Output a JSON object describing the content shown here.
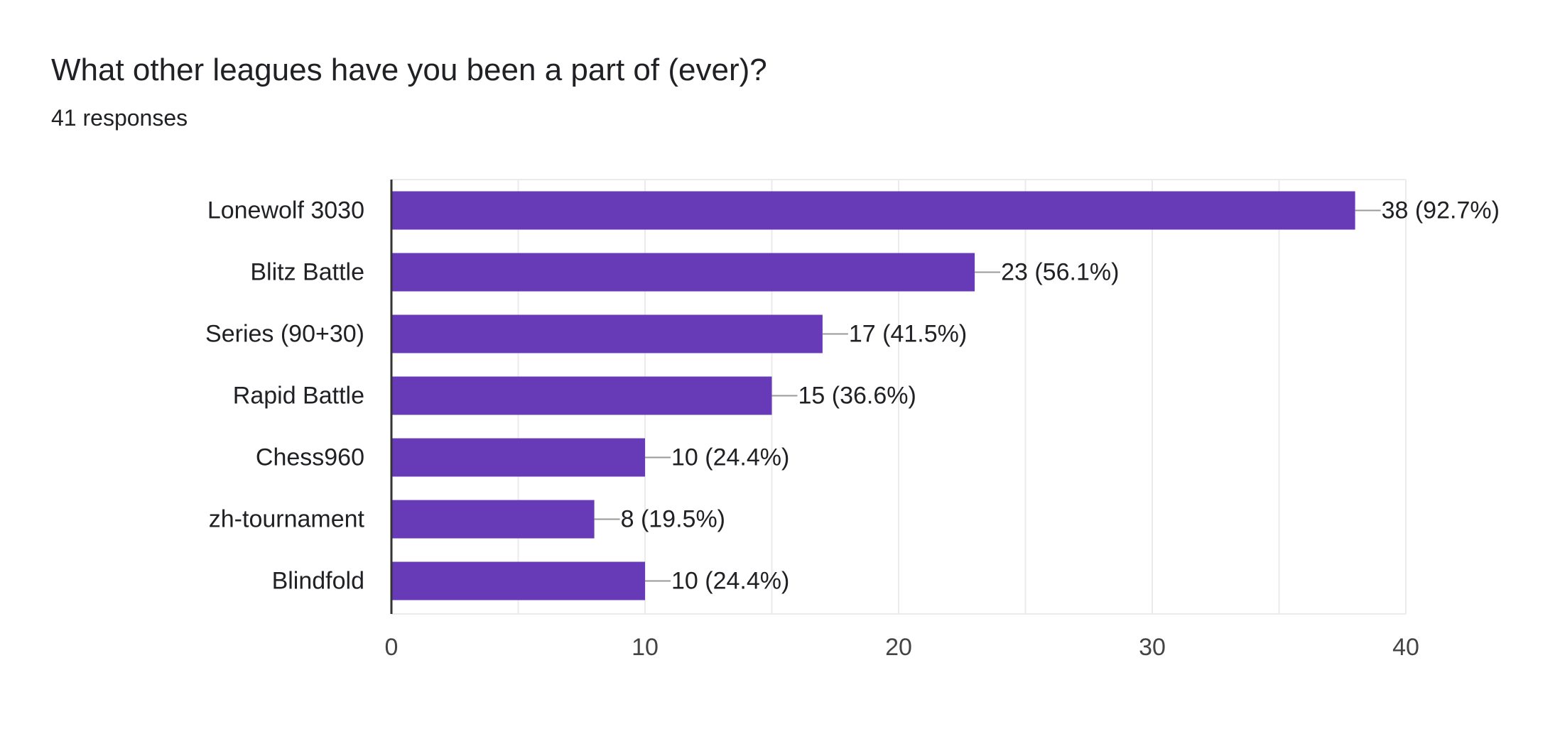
{
  "question": {
    "title": "What other leagues have you been a part of (ever)?",
    "responses": "41 responses"
  },
  "colors": {
    "bar": "#673AB7",
    "grid": "#EBEBEB",
    "axis": "#333333",
    "leader": "#999999",
    "text": "#202124",
    "tick": "#444444"
  },
  "chart_data": {
    "type": "bar",
    "orientation": "horizontal",
    "categories": [
      "Lonewolf 3030",
      "Blitz Battle",
      "Series (90+30)",
      "Rapid Battle",
      "Chess960",
      "zh-tournament",
      "Blindfold"
    ],
    "values": [
      38,
      23,
      17,
      15,
      10,
      8,
      10
    ],
    "data_labels": [
      "38 (92.7%)",
      "23 (56.1%)",
      "17 (41.5%)",
      "15 (36.6%)",
      "10 (24.4%)",
      "8 (19.5%)",
      "10 (24.4%)"
    ],
    "xlim": [
      0,
      40
    ],
    "xticks": [
      0,
      10,
      20,
      30,
      40
    ],
    "xtick_labels": [
      "0",
      "10",
      "20",
      "30",
      "40"
    ],
    "minor_grid_step": 5,
    "grid": true,
    "legend": "none"
  }
}
